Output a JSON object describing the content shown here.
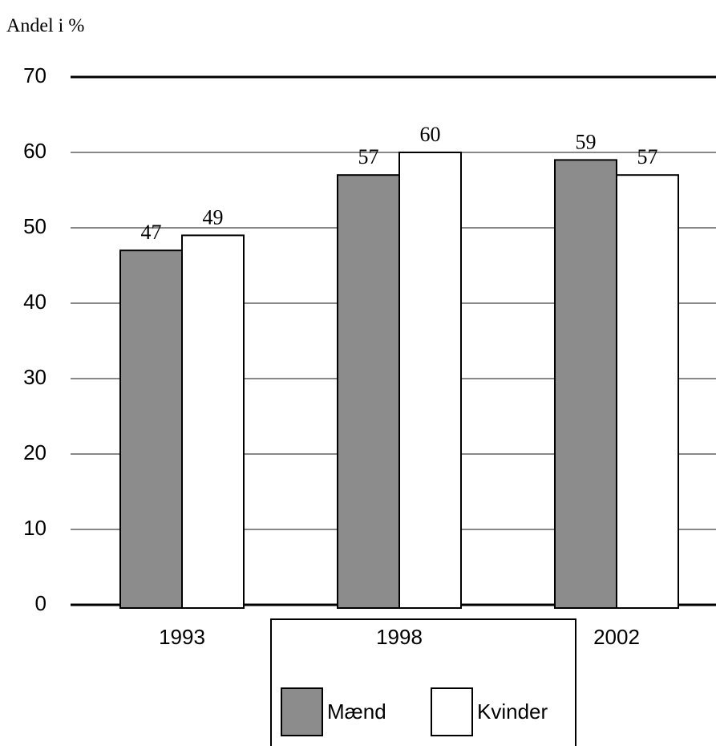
{
  "chart_data": {
    "type": "bar",
    "y_label": "Andel i %",
    "categories": [
      "1993",
      "1998",
      "2002"
    ],
    "series": [
      {
        "name": "Mænd",
        "color": "#8c8c8c",
        "values": [
          47,
          57,
          59
        ]
      },
      {
        "name": "Kvinder",
        "color": "#ffffff",
        "values": [
          49,
          60,
          57
        ]
      }
    ],
    "ylim": [
      0,
      70
    ],
    "yticks": [
      0,
      10,
      20,
      30,
      40,
      50,
      60,
      70
    ],
    "grid": true,
    "legend": "bottom"
  }
}
